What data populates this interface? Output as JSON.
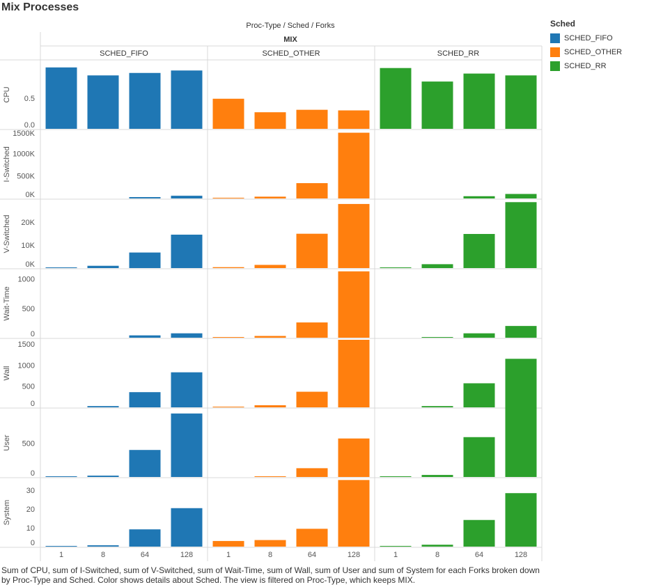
{
  "title": "Mix Processes",
  "header": {
    "fields": "Proc-Type  /  Sched  /  Forks",
    "proc_type": "MIX"
  },
  "legend": {
    "title": "Sched",
    "items": [
      {
        "label": "SCHED_FIFO",
        "color": "#1f77b4"
      },
      {
        "label": "SCHED_OTHER",
        "color": "#ff7f0e"
      },
      {
        "label": "SCHED_RR",
        "color": "#2ca02c"
      }
    ]
  },
  "caption": "Sum of CPU, sum of I-Switched, sum of V-Switched, sum of Wait-Time, sum of Wall, sum of User and sum of System for each Forks broken down by Proc-Type and Sched.  Color shows details about Sched. The view is filtered on Proc-Type, which keeps MIX.",
  "chart_data": {
    "type": "bar",
    "panels": [
      "SCHED_FIFO",
      "SCHED_OTHER",
      "SCHED_RR"
    ],
    "categories": [
      "1",
      "8",
      "64",
      "128"
    ],
    "colors": {
      "SCHED_FIFO": "#1f77b4",
      "SCHED_OTHER": "#ff7f0e",
      "SCHED_RR": "#2ca02c"
    },
    "rows": [
      {
        "measure": "CPU",
        "ylim": [
          0,
          1.1
        ],
        "ticks": [
          {
            "v": 0,
            "label": "0.0"
          },
          {
            "v": 0.5,
            "label": "0.5"
          }
        ],
        "values": {
          "SCHED_FIFO": [
            1.0,
            0.87,
            0.91,
            0.95
          ],
          "SCHED_OTHER": [
            0.49,
            0.27,
            0.31,
            0.3
          ],
          "SCHED_RR": [
            0.99,
            0.77,
            0.9,
            0.87
          ]
        }
      },
      {
        "measure": "I-Switched",
        "ylim": [
          0,
          1500000
        ],
        "ticks": [
          {
            "v": 0,
            "label": "0K"
          },
          {
            "v": 500000,
            "label": "500K"
          },
          {
            "v": 1000000,
            "label": "1000K"
          },
          {
            "v": 1500000,
            "label": "1500K"
          }
        ],
        "values": {
          "SCHED_FIFO": [
            0,
            0,
            30000,
            60000
          ],
          "SCHED_OTHER": [
            15000,
            40000,
            340000,
            1460000
          ],
          "SCHED_RR": [
            0,
            0,
            50000,
            100000
          ]
        }
      },
      {
        "measure": "V-Switched",
        "ylim": [
          0,
          29500
        ],
        "ticks": [
          {
            "v": 0,
            "label": "0K"
          },
          {
            "v": 10000,
            "label": "10K"
          },
          {
            "v": 20000,
            "label": "20K"
          }
        ],
        "values": {
          "SCHED_FIFO": [
            300,
            1000,
            6800,
            14600
          ],
          "SCHED_OTHER": [
            400,
            1400,
            15000,
            28000
          ],
          "SCHED_RR": [
            300,
            1700,
            14900,
            28800
          ]
        }
      },
      {
        "measure": "Wait-Time",
        "ylim": [
          0,
          1150
        ],
        "ticks": [
          {
            "v": 0,
            "label": "0"
          },
          {
            "v": 500,
            "label": "500"
          },
          {
            "v": 1000,
            "label": "1000"
          }
        ],
        "values": {
          "SCHED_FIFO": [
            0,
            0,
            40,
            75
          ],
          "SCHED_OTHER": [
            10,
            30,
            260,
            1130
          ],
          "SCHED_RR": [
            0,
            10,
            75,
            200
          ]
        }
      },
      {
        "measure": "Wall",
        "ylim": [
          0,
          1600
        ],
        "ticks": [
          {
            "v": 0,
            "label": "0"
          },
          {
            "v": 500,
            "label": "500"
          },
          {
            "v": 1000,
            "label": "1000"
          },
          {
            "v": 1500,
            "label": "1500"
          }
        ],
        "values": {
          "SCHED_FIFO": [
            0,
            30,
            360,
            830
          ],
          "SCHED_OTHER": [
            10,
            50,
            370,
            1600
          ],
          "SCHED_RR": [
            0,
            30,
            570,
            1150
          ]
        }
      },
      {
        "measure": "User",
        "ylim": [
          0,
          1000
        ],
        "ticks": [
          {
            "v": 0,
            "label": "0"
          },
          {
            "v": 500,
            "label": "500"
          }
        ],
        "values": {
          "SCHED_FIFO": [
            5,
            20,
            400,
            940
          ],
          "SCHED_OTHER": [
            0,
            5,
            130,
            570
          ],
          "SCHED_RR": [
            5,
            30,
            590,
            1160
          ]
        }
      },
      {
        "measure": "System",
        "ylim": [
          0,
          36
        ],
        "ticks": [
          {
            "v": 0,
            "label": "0"
          },
          {
            "v": 10,
            "label": "10"
          },
          {
            "v": 20,
            "label": "20"
          },
          {
            "v": 30,
            "label": "30"
          }
        ],
        "values": {
          "SCHED_FIFO": [
            0.3,
            0.7,
            9.2,
            20.5
          ],
          "SCHED_OTHER": [
            3,
            3.5,
            9.5,
            35.5
          ],
          "SCHED_RR": [
            0.3,
            1,
            14.2,
            28.5
          ]
        }
      }
    ]
  }
}
